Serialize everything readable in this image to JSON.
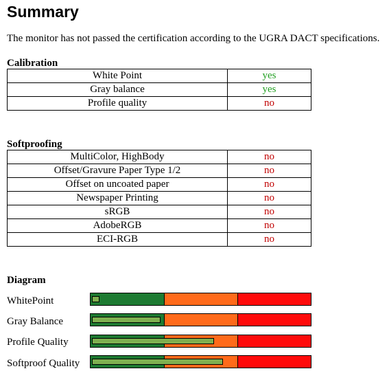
{
  "title": "Summary",
  "intro": "The monitor has not passed the certification according to the UGRA DACT specifications.",
  "calibration": {
    "heading": "Calibration",
    "rows": [
      {
        "name": "White Point",
        "result": "yes"
      },
      {
        "name": "Gray balance",
        "result": "yes"
      },
      {
        "name": "Profile quality",
        "result": "no"
      }
    ]
  },
  "softproofing": {
    "heading": "Softproofing",
    "rows": [
      {
        "name": "MultiColor, HighBody",
        "result": "no"
      },
      {
        "name": "Offset/Gravure Paper Type 1/2",
        "result": "no"
      },
      {
        "name": "Offset on uncoated paper",
        "result": "no"
      },
      {
        "name": "Newspaper Printing",
        "result": "no"
      },
      {
        "name": "sRGB",
        "result": "no"
      },
      {
        "name": "AdobeRGB",
        "result": "no"
      },
      {
        "name": "ECI-RGB",
        "result": "no"
      }
    ]
  },
  "diagram": {
    "heading": "Diagram",
    "colors": {
      "green": "#1d7a31",
      "orange": "#ff6a1a",
      "red": "#ff0a0a",
      "indicator": "#7fb050"
    },
    "bars": [
      {
        "label": "WhitePoint",
        "level": 0.03
      },
      {
        "label": "Gray Balance",
        "level": 0.31
      },
      {
        "label": "Profile Quality",
        "level": 0.56
      },
      {
        "label": "Softproof Quality",
        "level": 0.6
      }
    ]
  }
}
